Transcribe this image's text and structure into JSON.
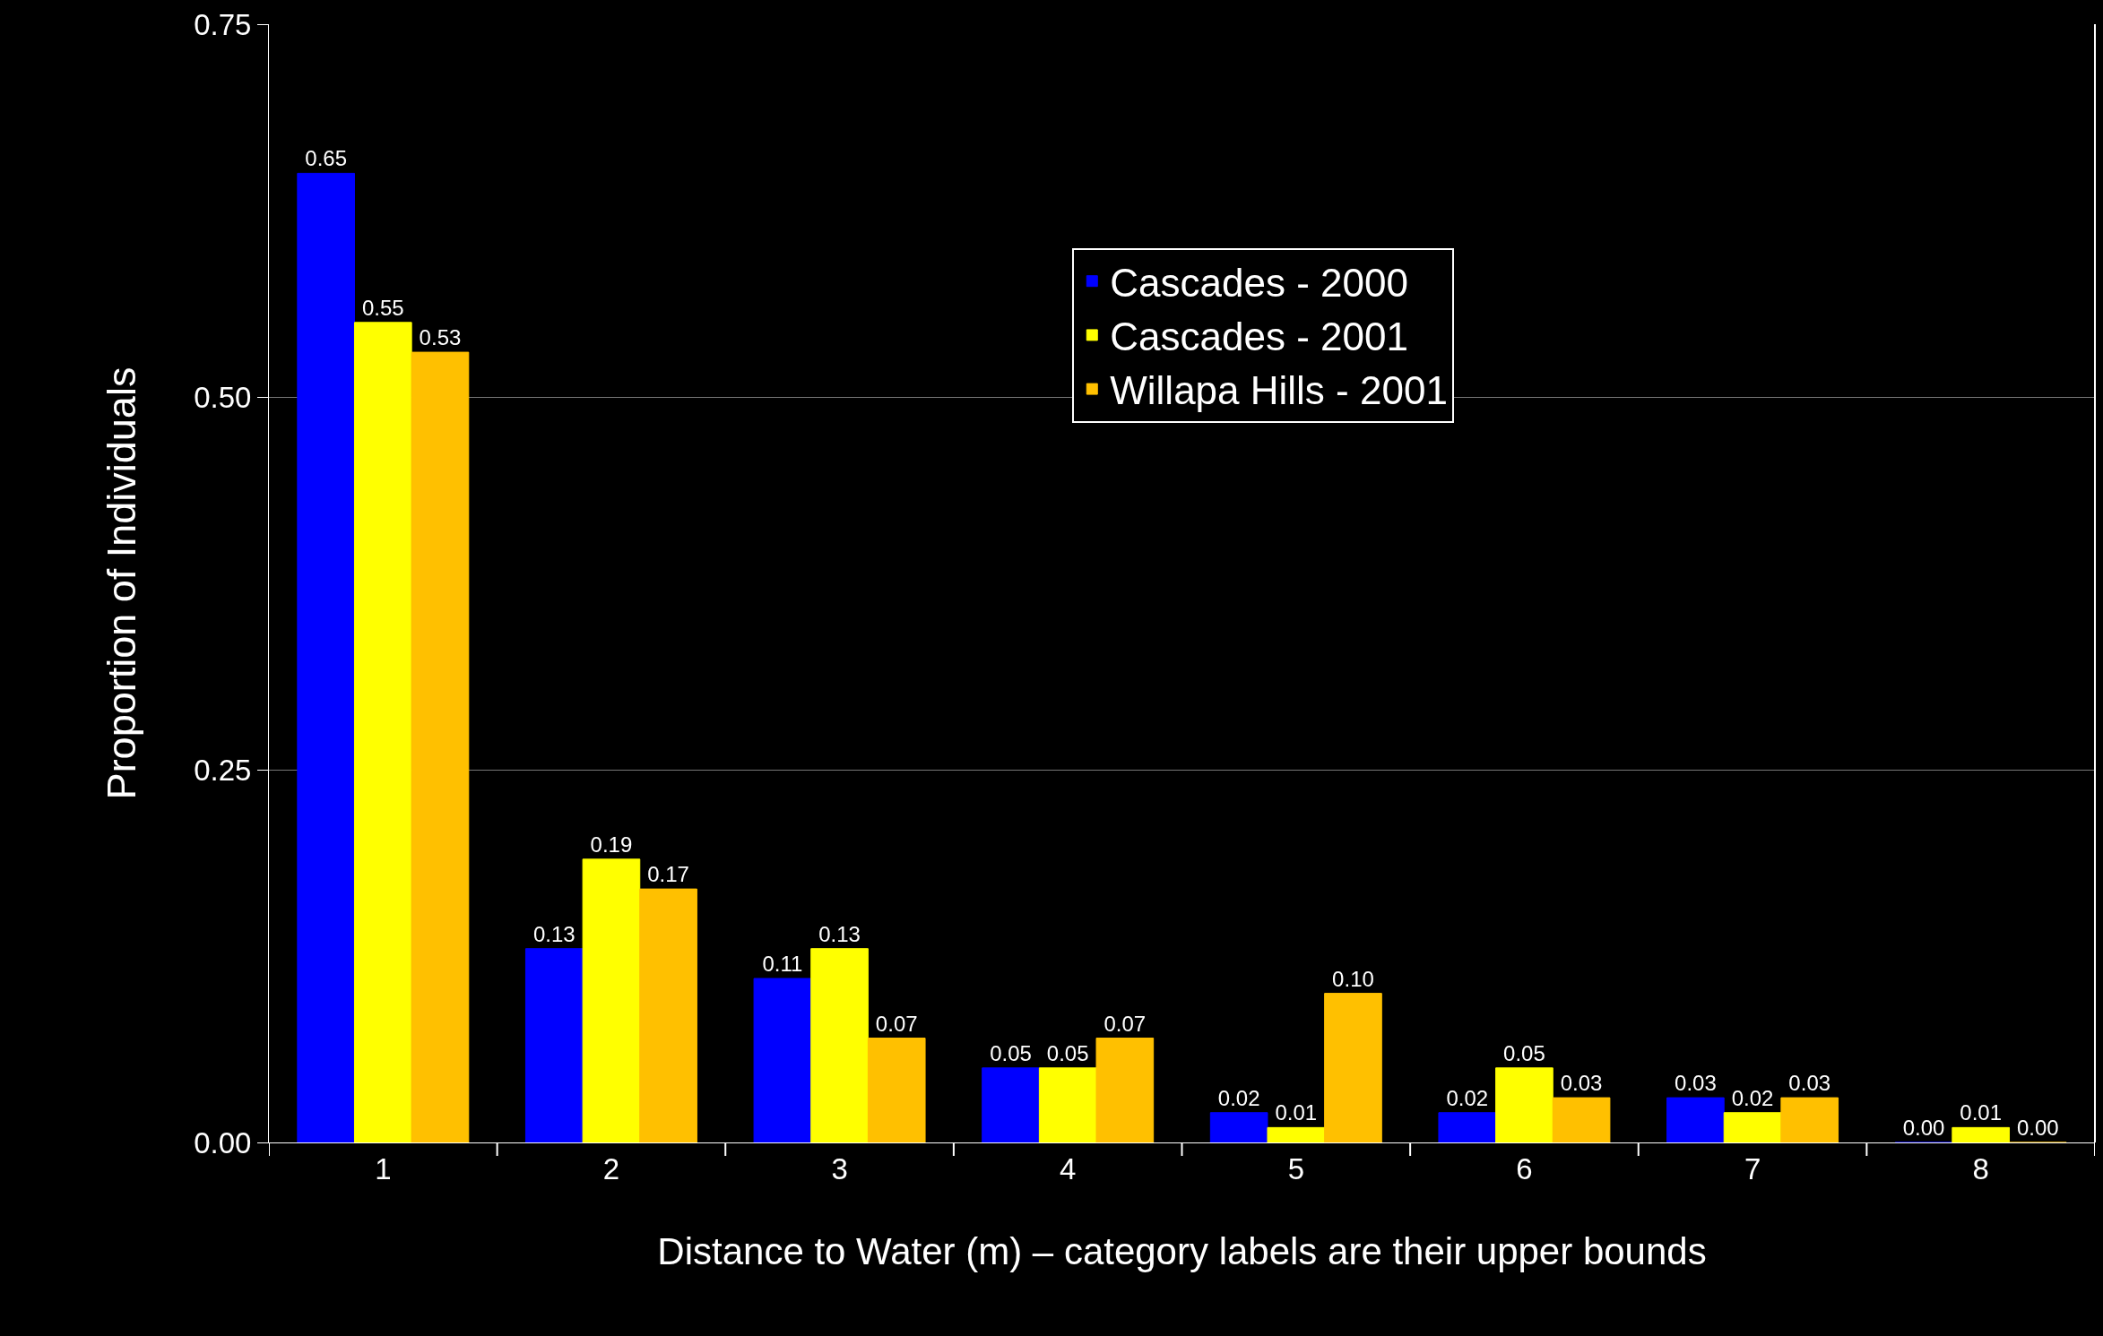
{
  "chart_data": {
    "type": "bar",
    "xlabel": "Distance to Water (m) – category labels are their upper bounds",
    "ylabel": "Proportion of Individuals",
    "categories": [
      "1",
      "2",
      "3",
      "4",
      "5",
      "6",
      "7",
      "8"
    ],
    "series": [
      {
        "name": "Cascades - 2000",
        "color": "#0000ff",
        "values": [
          0.65,
          0.13,
          0.11,
          0.05,
          0.02,
          0.02,
          0.03,
          0.0
        ],
        "value_labels": [
          "0.65",
          "0.13",
          "0.11",
          "0.05",
          "0.02",
          "0.02",
          "0.03",
          "0.00"
        ]
      },
      {
        "name": "Cascades - 2001",
        "color": "#ffff00",
        "values": [
          0.55,
          0.19,
          0.13,
          0.05,
          0.01,
          0.05,
          0.02,
          0.01
        ],
        "value_labels": [
          "0.55",
          "0.19",
          "0.13",
          "0.05",
          "0.01",
          "0.05",
          "0.02",
          "0.01"
        ]
      },
      {
        "name": "Willapa Hills - 2001",
        "color": "#ffc000",
        "values": [
          0.53,
          0.17,
          0.07,
          0.07,
          0.1,
          0.03,
          0.03,
          0.0
        ],
        "value_labels": [
          "0.53",
          "0.17",
          "0.07",
          "0.07",
          "0.10",
          "0.03",
          "0.03",
          "0.00"
        ]
      }
    ],
    "ylim": [
      0,
      0.75
    ],
    "yticks": [
      {
        "value": 0,
        "label": "0.00"
      },
      {
        "value": 0.25,
        "label": "0.25"
      },
      {
        "value": 0.5,
        "label": "0.50"
      },
      {
        "value": 0.75,
        "label": "0.75"
      }
    ],
    "grid": "y",
    "legend": "top right"
  }
}
